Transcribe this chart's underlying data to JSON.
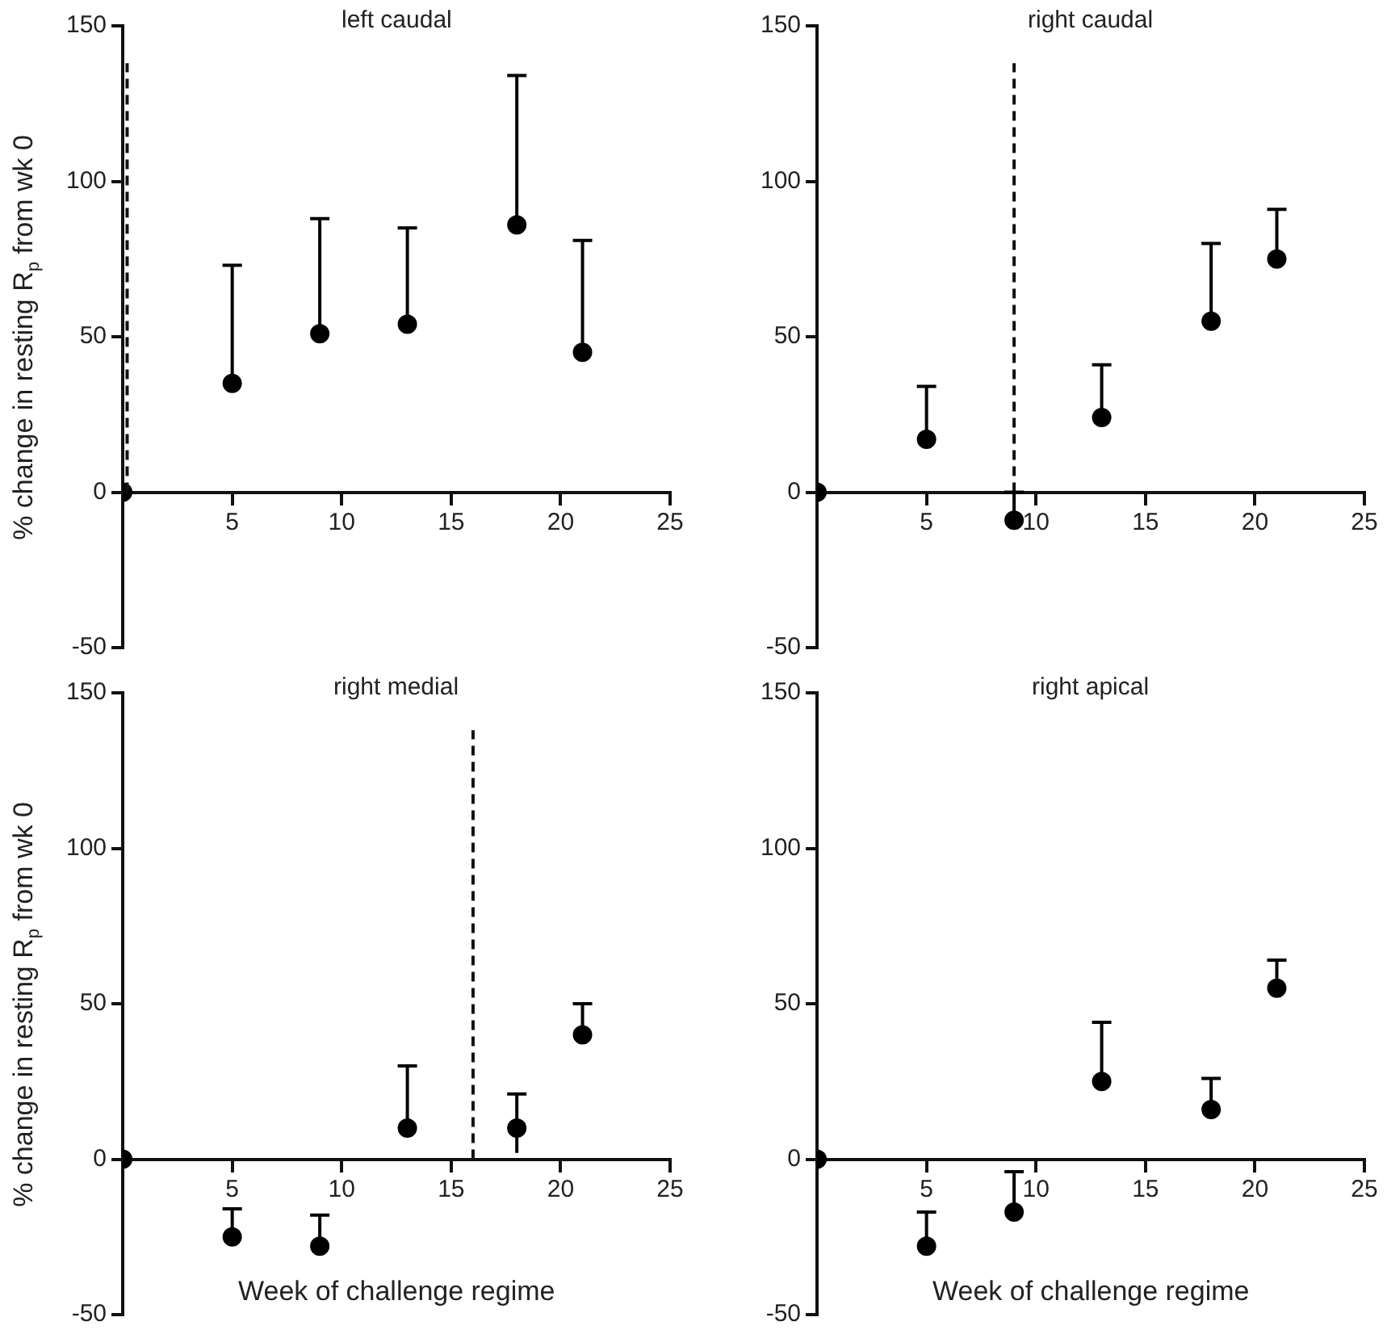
{
  "chart_data": [
    {
      "type": "scatter",
      "title": "left caudal",
      "ylabel": "% change in resting R$_{p}$ from wk 0",
      "color": "#000000",
      "marker": "circle",
      "grid": false,
      "x": [
        0,
        5,
        9,
        13,
        18,
        21
      ],
      "values": [
        0,
        35,
        51,
        54,
        86,
        45
      ],
      "errors": [
        null,
        [
          35,
          73
        ],
        [
          51,
          88
        ],
        [
          54,
          85
        ],
        [
          86,
          134
        ],
        [
          45,
          81
        ]
      ],
      "xlim": [
        0,
        25
      ],
      "xticks": [
        5,
        10,
        15,
        20,
        25
      ],
      "ylim": [
        -50,
        150
      ],
      "yticks": [
        -50,
        0,
        50,
        100,
        150
      ],
      "ref_lines": [
        {
          "axis": "x",
          "value": 0.2,
          "line_style": "dashed"
        }
      ]
    },
    {
      "type": "scatter",
      "title": "right caudal",
      "color": "#000000",
      "marker": "circle",
      "grid": false,
      "x": [
        0,
        5,
        9,
        13,
        18,
        21
      ],
      "values": [
        0,
        17,
        -9,
        24,
        55,
        75
      ],
      "errors": [
        null,
        [
          17,
          34
        ],
        [
          -9,
          0
        ],
        [
          24,
          41
        ],
        [
          55,
          80
        ],
        [
          75,
          91
        ]
      ],
      "xlim": [
        0,
        25
      ],
      "xticks": [
        5,
        10,
        15,
        20,
        25
      ],
      "ylim": [
        -50,
        150
      ],
      "yticks": [
        -50,
        0,
        50,
        100,
        150
      ],
      "ref_lines": [
        {
          "axis": "x",
          "value": 9,
          "line_style": "dashed"
        }
      ]
    },
    {
      "type": "scatter",
      "title": "right medial",
      "ylabel": "% change in resting R$_{p}$ from wk 0",
      "xlabel": "Week of challenge regime",
      "color": "#000000",
      "marker": "circle",
      "grid": false,
      "x": [
        0,
        5,
        9,
        13,
        18,
        21
      ],
      "values": [
        0,
        -25,
        -28,
        10,
        10,
        40
      ],
      "errors": [
        null,
        [
          -25,
          -16
        ],
        [
          -28,
          -18
        ],
        [
          10,
          30
        ],
        [
          2,
          21
        ],
        [
          40,
          50
        ]
      ],
      "xlim": [
        0,
        25
      ],
      "xticks": [
        5,
        10,
        15,
        20,
        25
      ],
      "ylim": [
        -50,
        150
      ],
      "yticks": [
        -50,
        0,
        50,
        100,
        150
      ],
      "ref_lines": [
        {
          "axis": "x",
          "value": 16,
          "line_style": "dashed"
        }
      ]
    },
    {
      "type": "scatter",
      "title": "right apical",
      "xlabel": "Week of challenge regime",
      "color": "#000000",
      "marker": "circle",
      "grid": false,
      "x": [
        0,
        5,
        9,
        13,
        18,
        21
      ],
      "values": [
        0,
        -28,
        -17,
        25,
        16,
        55
      ],
      "errors": [
        null,
        [
          -28,
          -17
        ],
        [
          -17,
          -4
        ],
        [
          25,
          44
        ],
        [
          16,
          26
        ],
        [
          55,
          64
        ]
      ],
      "xlim": [
        0,
        25
      ],
      "xticks": [
        5,
        10,
        15,
        20,
        25
      ],
      "ylim": [
        -50,
        150
      ],
      "yticks": [
        -50,
        0,
        50,
        100,
        150
      ]
    }
  ]
}
